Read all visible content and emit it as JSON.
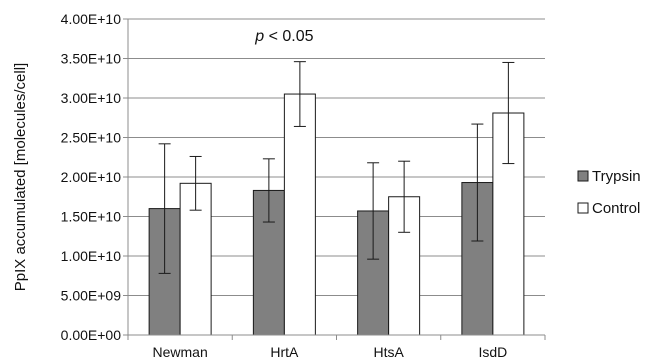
{
  "chart_data": {
    "type": "bar",
    "ylabel": "PpIX accumulated [molecules/cell]",
    "categories": [
      "Newman",
      "HrtA",
      "HtsA",
      "IsdD"
    ],
    "yticks": [
      {
        "value": 0,
        "label": "0.00E+00"
      },
      {
        "value": 5000000000,
        "label": "5.00E+09"
      },
      {
        "value": 10000000000,
        "label": "1.00E+10"
      },
      {
        "value": 15000000000,
        "label": "1.50E+10"
      },
      {
        "value": 20000000000,
        "label": "2.00E+10"
      },
      {
        "value": 25000000000,
        "label": "2.50E+10"
      },
      {
        "value": 30000000000,
        "label": "3.00E+10"
      },
      {
        "value": 35000000000,
        "label": "3.50E+10"
      },
      {
        "value": 40000000000,
        "label": "4.00E+10"
      }
    ],
    "ylim": [
      0,
      40000000000
    ],
    "grid": true,
    "legend_position": "right",
    "series": [
      {
        "name": "Trypsin",
        "color": "#808080",
        "values": [
          16000000000,
          18300000000,
          15700000000,
          19300000000
        ],
        "errors": [
          8200000000,
          4000000000,
          6100000000,
          7400000000
        ]
      },
      {
        "name": "Control",
        "color": "#ffffff",
        "values": [
          19200000000,
          30500000000,
          17500000000,
          28100000000
        ],
        "errors": [
          3400000000,
          4100000000,
          4500000000,
          6400000000
        ]
      }
    ],
    "annotations": [
      {
        "text": "p < 0.05",
        "category": "HrtA",
        "y": 38000000000
      }
    ]
  }
}
